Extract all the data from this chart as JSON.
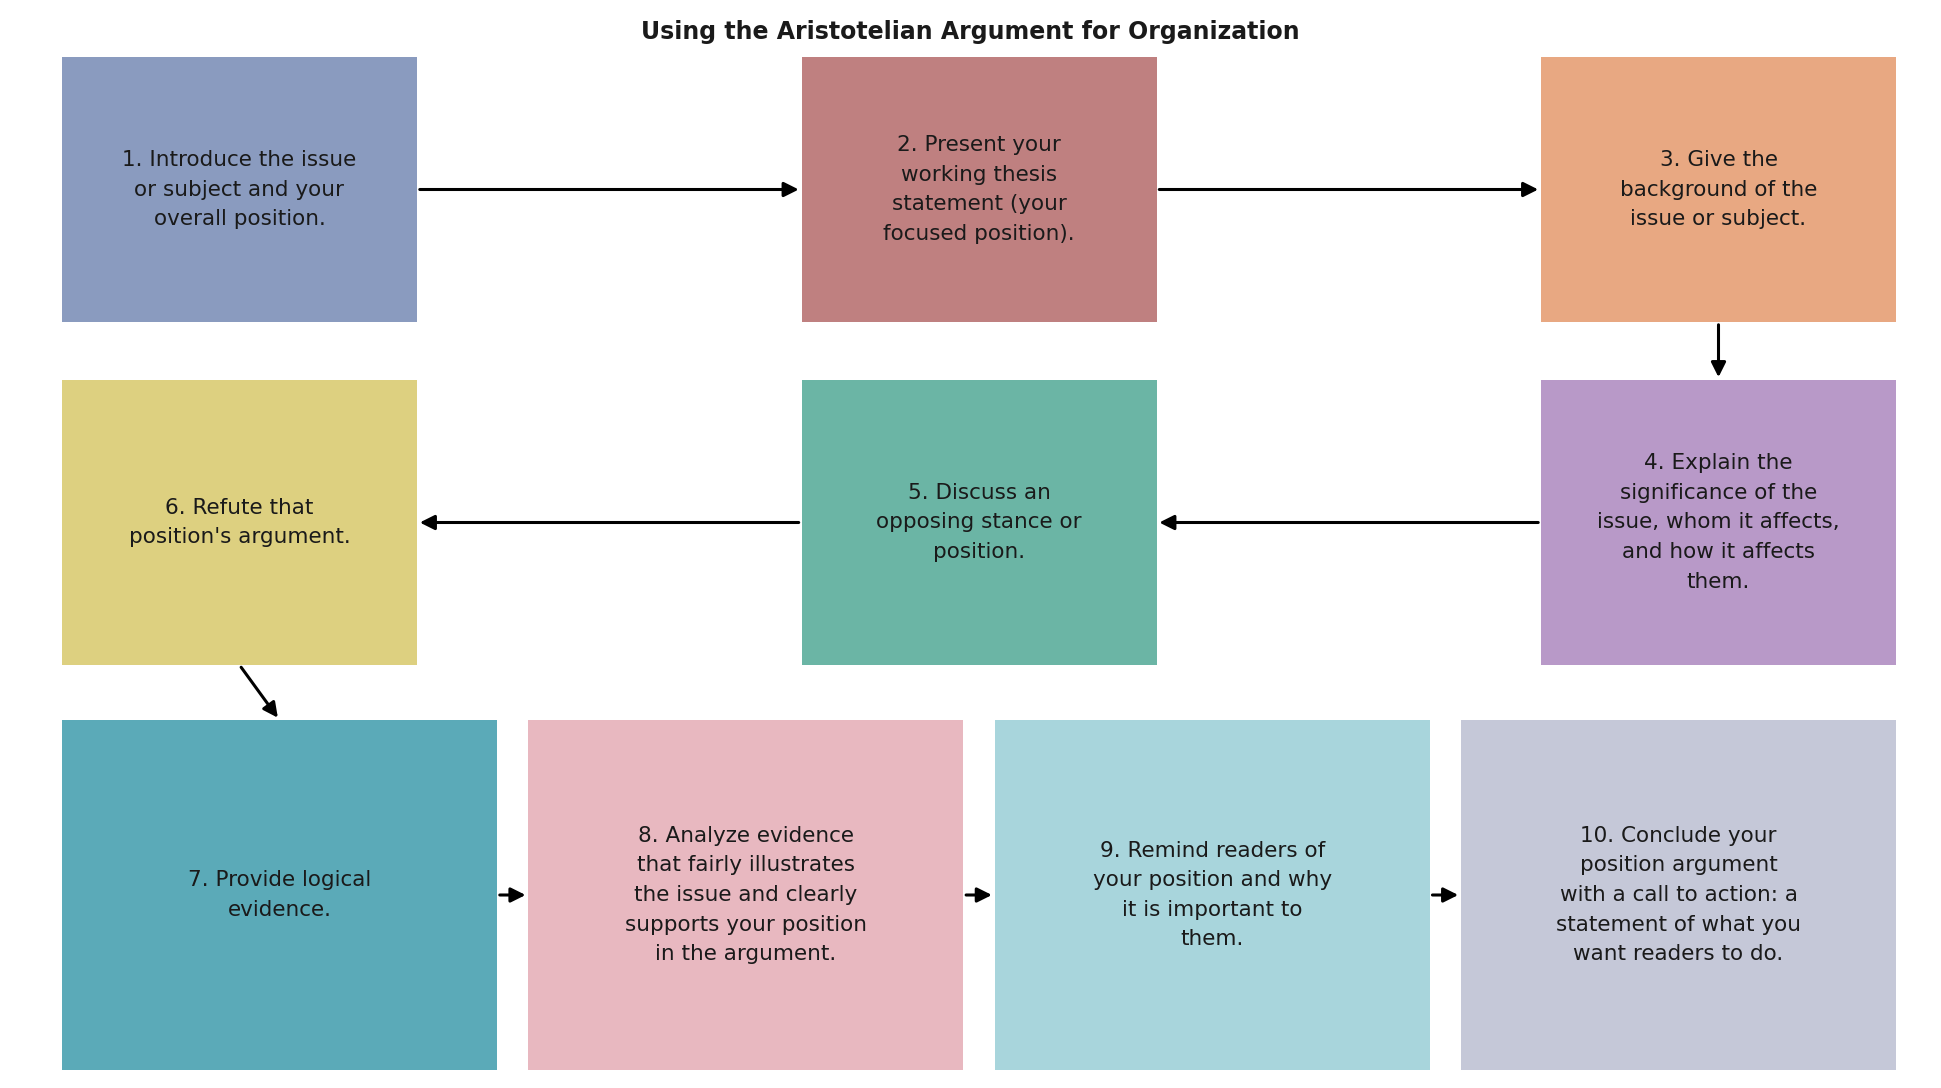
{
  "title": "Using the Aristotelian Argument for Organization",
  "title_fontsize": 17,
  "title_fontweight": "bold",
  "background_color": "#ffffff",
  "text_color": "#1a1a1a",
  "font_size": 15.5,
  "boxes": [
    {
      "id": 1,
      "text": "1. Introduce the issue\nor subject and your\noverall position.",
      "color": "#8a9bbf",
      "row": 0,
      "col": 0
    },
    {
      "id": 2,
      "text": "2. Present your\nworking thesis\nstatement (your\nfocused position).",
      "color": "#bf8080",
      "row": 0,
      "col": 1
    },
    {
      "id": 3,
      "text": "3. Give the\nbackground of the\nissue or subject.",
      "color": "#e8a882",
      "row": 0,
      "col": 2
    },
    {
      "id": 4,
      "text": "4. Explain the\nsignificance of the\nissue, whom it affects,\nand how it affects\nthem.",
      "color": "#b899c8",
      "row": 1,
      "col": 2
    },
    {
      "id": 5,
      "text": "5. Discuss an\nopposing stance or\nposition.",
      "color": "#6bb5a5",
      "row": 1,
      "col": 1
    },
    {
      "id": 6,
      "text": "6. Refute that\nposition's argument.",
      "color": "#ddd080",
      "row": 1,
      "col": 0
    },
    {
      "id": 7,
      "text": "7. Provide logical\nevidence.",
      "color": "#5baab8",
      "row": 2,
      "col": 0
    },
    {
      "id": 8,
      "text": "8. Analyze evidence\nthat fairly illustrates\nthe issue and clearly\nsupports your position\nin the argument.",
      "color": "#e8b8c0",
      "row": 2,
      "col": 1
    },
    {
      "id": 9,
      "text": "9. Remind readers of\nyour position and why\nit is important to\nthem.",
      "color": "#a8d5dc",
      "row": 2,
      "col": 2
    },
    {
      "id": 10,
      "text": "10. Conclude your\nposition argument\nwith a call to action: a\nstatement of what you\nwant readers to do.",
      "color": "#c5c8d8",
      "row": 2,
      "col": 3
    }
  ]
}
